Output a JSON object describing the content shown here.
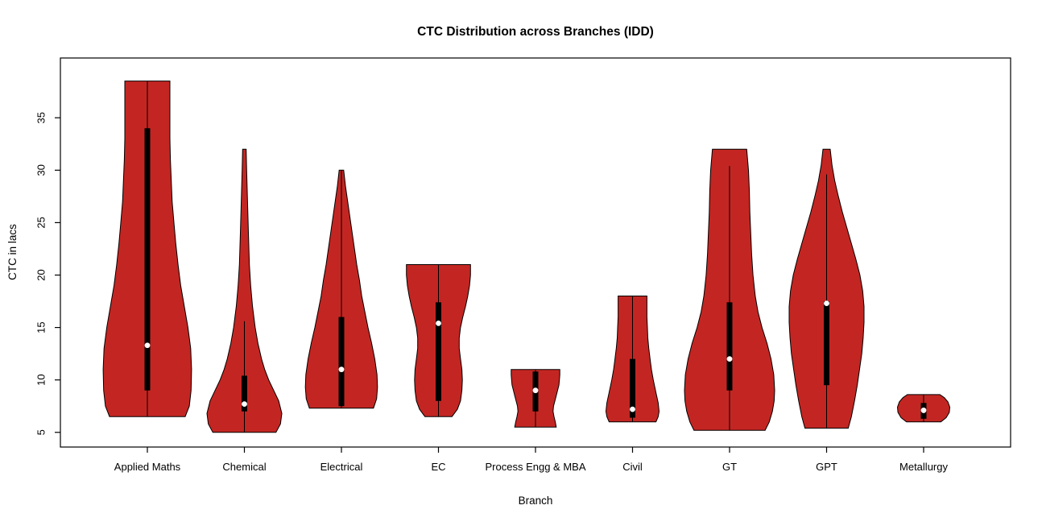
{
  "chart_data": {
    "type": "violin",
    "title": "CTC Distribution across Branches (IDD)",
    "xlabel": "Branch",
    "ylabel": "CTC in lacs",
    "ylim": [
      3.6,
      40.7
    ],
    "yticks": [
      5,
      10,
      15,
      20,
      25,
      30,
      35
    ],
    "grid": false,
    "legend": "none",
    "fill_color": "#C32622",
    "stroke_color": "#000000",
    "box_color": "#000000",
    "median_dot_color": "#ffffff",
    "categories": [
      {
        "label": "Applied Maths",
        "slug": "applied-maths",
        "range": [
          6.5,
          38.5
        ],
        "whisker": [
          6.5,
          38.5
        ],
        "q1": 9,
        "q3": 34,
        "median": 13.3,
        "profile": [
          [
            6.5,
            0.84
          ],
          [
            7.5,
            0.93
          ],
          [
            9,
            0.97
          ],
          [
            11,
            0.98
          ],
          [
            13,
            0.96
          ],
          [
            15,
            0.9
          ],
          [
            17,
            0.82
          ],
          [
            19,
            0.74
          ],
          [
            21,
            0.68
          ],
          [
            23,
            0.63
          ],
          [
            25,
            0.59
          ],
          [
            27,
            0.55
          ],
          [
            29,
            0.53
          ],
          [
            31,
            0.51
          ],
          [
            33,
            0.5
          ],
          [
            35,
            0.5
          ],
          [
            37,
            0.5
          ],
          [
            38.5,
            0.5
          ]
        ]
      },
      {
        "label": "Chemical",
        "slug": "chemical",
        "range": [
          5,
          32
        ],
        "whisker": [
          5,
          15.6
        ],
        "q1": 7,
        "q3": 10.4,
        "median": 7.7,
        "profile": [
          [
            5,
            0.7
          ],
          [
            5.8,
            0.8
          ],
          [
            6.8,
            0.83
          ],
          [
            8,
            0.76
          ],
          [
            9,
            0.65
          ],
          [
            10,
            0.54
          ],
          [
            11,
            0.45
          ],
          [
            12,
            0.38
          ],
          [
            13.5,
            0.3
          ],
          [
            15,
            0.24
          ],
          [
            17,
            0.18
          ],
          [
            19,
            0.14
          ],
          [
            21,
            0.11
          ],
          [
            24,
            0.09
          ],
          [
            27,
            0.07
          ],
          [
            30,
            0.05
          ],
          [
            32,
            0.04
          ]
        ]
      },
      {
        "label": "Electrical",
        "slug": "electrical",
        "range": [
          7.3,
          30
        ],
        "whisker": [
          7.3,
          30
        ],
        "q1": 7.5,
        "q3": 16,
        "median": 11,
        "profile": [
          [
            7.3,
            0.71
          ],
          [
            8.2,
            0.78
          ],
          [
            9.3,
            0.8
          ],
          [
            10.5,
            0.79
          ],
          [
            12,
            0.74
          ],
          [
            13.5,
            0.67
          ],
          [
            15,
            0.59
          ],
          [
            16.5,
            0.52
          ],
          [
            18,
            0.45
          ],
          [
            19.5,
            0.4
          ],
          [
            21,
            0.34
          ],
          [
            22.5,
            0.29
          ],
          [
            24,
            0.24
          ],
          [
            25.5,
            0.19
          ],
          [
            27,
            0.14
          ],
          [
            28.5,
            0.09
          ],
          [
            30,
            0.05
          ]
        ]
      },
      {
        "label": "EC",
        "slug": "ec",
        "range": [
          6.5,
          21
        ],
        "whisker": [
          6.5,
          21
        ],
        "q1": 8,
        "q3": 17.4,
        "median": 15.4,
        "profile": [
          [
            6.5,
            0.3
          ],
          [
            7.2,
            0.42
          ],
          [
            8,
            0.49
          ],
          [
            9,
            0.52
          ],
          [
            10,
            0.53
          ],
          [
            11,
            0.52
          ],
          [
            12,
            0.49
          ],
          [
            13,
            0.46
          ],
          [
            14,
            0.46
          ],
          [
            15,
            0.49
          ],
          [
            16,
            0.54
          ],
          [
            17,
            0.6
          ],
          [
            18,
            0.65
          ],
          [
            19,
            0.69
          ],
          [
            20,
            0.71
          ],
          [
            21,
            0.71
          ]
        ]
      },
      {
        "label": "Process Engg & MBA",
        "slug": "process-engg-mba",
        "range": [
          5.5,
          11
        ],
        "whisker": [
          5.5,
          11
        ],
        "q1": 7,
        "q3": 10.8,
        "median": 9,
        "profile": [
          [
            5.5,
            0.46
          ],
          [
            6,
            0.44
          ],
          [
            6.5,
            0.41
          ],
          [
            7,
            0.39
          ],
          [
            7.5,
            0.4
          ],
          [
            8,
            0.43
          ],
          [
            8.5,
            0.46
          ],
          [
            9,
            0.49
          ],
          [
            9.5,
            0.52
          ],
          [
            10,
            0.53
          ],
          [
            10.5,
            0.54
          ],
          [
            11,
            0.54
          ]
        ]
      },
      {
        "label": "Civil",
        "slug": "civil",
        "range": [
          6,
          18
        ],
        "whisker": [
          6,
          18
        ],
        "q1": 6.4,
        "q3": 12,
        "median": 7.2,
        "profile": [
          [
            6,
            0.52
          ],
          [
            6.5,
            0.57
          ],
          [
            7,
            0.59
          ],
          [
            7.8,
            0.57
          ],
          [
            8.8,
            0.52
          ],
          [
            10,
            0.46
          ],
          [
            11,
            0.42
          ],
          [
            12,
            0.39
          ],
          [
            13,
            0.36
          ],
          [
            14,
            0.34
          ],
          [
            15,
            0.33
          ],
          [
            16,
            0.32
          ],
          [
            17,
            0.32
          ],
          [
            18,
            0.32
          ]
        ]
      },
      {
        "label": "GT",
        "slug": "gt",
        "range": [
          5.2,
          32
        ],
        "whisker": [
          5.2,
          30.4
        ],
        "q1": 9,
        "q3": 17.4,
        "median": 12,
        "profile": [
          [
            5.2,
            0.79
          ],
          [
            6,
            0.88
          ],
          [
            7,
            0.95
          ],
          [
            8,
            0.99
          ],
          [
            9,
            1.0
          ],
          [
            10.5,
            0.98
          ],
          [
            12,
            0.92
          ],
          [
            13.5,
            0.83
          ],
          [
            15,
            0.72
          ],
          [
            16.5,
            0.63
          ],
          [
            18,
            0.57
          ],
          [
            20,
            0.52
          ],
          [
            22,
            0.49
          ],
          [
            24,
            0.47
          ],
          [
            26,
            0.45
          ],
          [
            28,
            0.44
          ],
          [
            30,
            0.42
          ],
          [
            32,
            0.38
          ]
        ]
      },
      {
        "label": "GPT",
        "slug": "gpt",
        "range": [
          5.4,
          32
        ],
        "whisker": [
          5.4,
          29.6
        ],
        "q1": 9.5,
        "q3": 17.5,
        "median": 17.3,
        "profile": [
          [
            5.4,
            0.48
          ],
          [
            6.5,
            0.55
          ],
          [
            8,
            0.62
          ],
          [
            9.5,
            0.68
          ],
          [
            11,
            0.73
          ],
          [
            12.5,
            0.78
          ],
          [
            14,
            0.81
          ],
          [
            15.5,
            0.83
          ],
          [
            17,
            0.83
          ],
          [
            18.5,
            0.8
          ],
          [
            20,
            0.74
          ],
          [
            21.5,
            0.65
          ],
          [
            23,
            0.55
          ],
          [
            24.5,
            0.45
          ],
          [
            26,
            0.35
          ],
          [
            27.5,
            0.26
          ],
          [
            29,
            0.18
          ],
          [
            30.5,
            0.12
          ],
          [
            32,
            0.08
          ]
        ]
      },
      {
        "label": "Metallurgy",
        "slug": "metallurgy",
        "range": [
          6,
          8.6
        ],
        "whisker": [
          6,
          8.6
        ],
        "q1": 6.3,
        "q3": 7.8,
        "median": 7.1,
        "profile": [
          [
            6,
            0.38
          ],
          [
            6.4,
            0.5
          ],
          [
            6.9,
            0.57
          ],
          [
            7.4,
            0.58
          ],
          [
            7.9,
            0.54
          ],
          [
            8.3,
            0.46
          ],
          [
            8.6,
            0.36
          ]
        ]
      }
    ]
  }
}
